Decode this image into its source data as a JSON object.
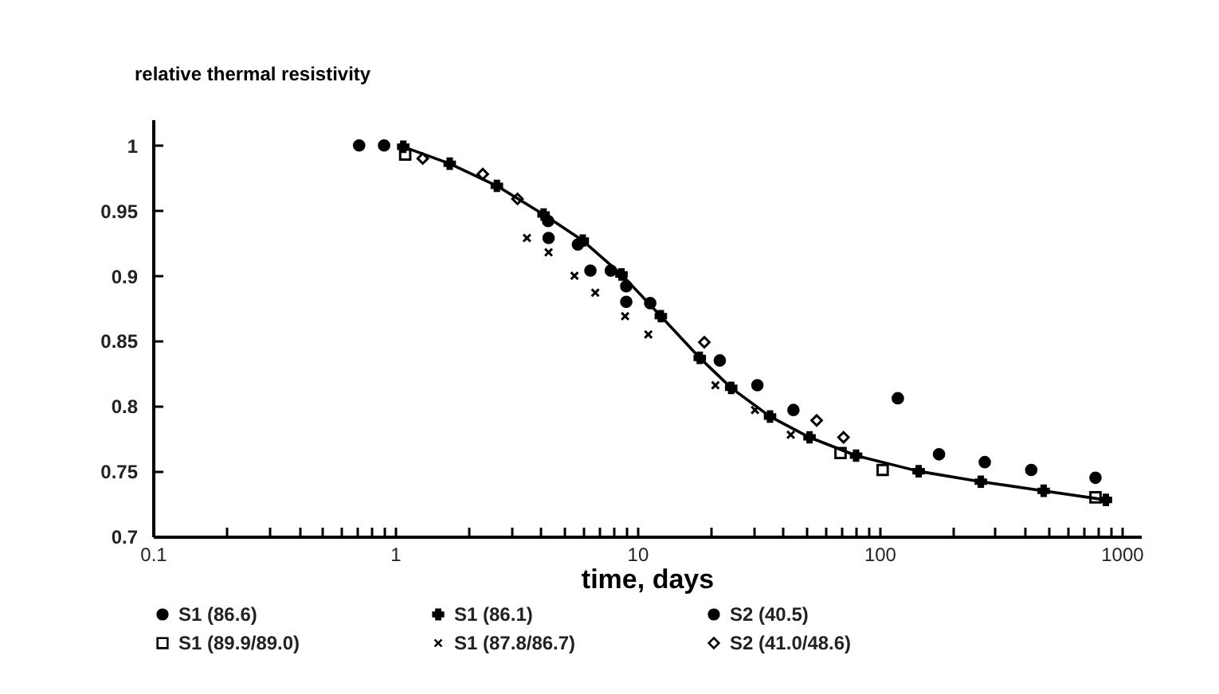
{
  "chart_data": {
    "type": "scatter",
    "ylabel": "relative thermal resistivity",
    "xlabel": "time, days",
    "log": "x",
    "xlim": [
      0.1,
      1200
    ],
    "ylim": [
      0.7,
      1.02
    ],
    "xticks": [
      0.1,
      {
        "value": 0.2,
        "label": null
      },
      {
        "value": 0.3,
        "label": null
      },
      {
        "value": 0.4,
        "label": null
      },
      {
        "value": 0.5,
        "label": null
      },
      {
        "value": 0.6,
        "label": null
      },
      {
        "value": 0.7,
        "label": null
      },
      {
        "value": 0.8,
        "label": null
      },
      {
        "value": 0.9,
        "label": null
      },
      1,
      {
        "value": 2,
        "label": null
      },
      {
        "value": 3,
        "label": null
      },
      {
        "value": 4,
        "label": null
      },
      {
        "value": 5,
        "label": null
      },
      {
        "value": 6,
        "label": null
      },
      {
        "value": 7,
        "label": null
      },
      {
        "value": 8,
        "label": null
      },
      {
        "value": 9,
        "label": null
      },
      10,
      {
        "value": 20,
        "label": null
      },
      {
        "value": 30,
        "label": null
      },
      {
        "value": 40,
        "label": null
      },
      {
        "value": 50,
        "label": null
      },
      {
        "value": 60,
        "label": null
      },
      {
        "value": 70,
        "label": null
      },
      {
        "value": 80,
        "label": null
      },
      {
        "value": 90,
        "label": null
      },
      100,
      {
        "value": 200,
        "label": null
      },
      {
        "value": 300,
        "label": null
      },
      {
        "value": 400,
        "label": null
      },
      {
        "value": 500,
        "label": null
      },
      {
        "value": 600,
        "label": null
      },
      {
        "value": 700,
        "label": null
      },
      {
        "value": 800,
        "label": null
      },
      {
        "value": 900,
        "label": null
      },
      1000
    ],
    "yticks": [
      0.7,
      0.75,
      0.8,
      0.85,
      0.9,
      0.95,
      1
    ],
    "legend": "bottom",
    "series": [
      {
        "name": "S1 (86.6)",
        "color": "#000000",
        "type": "scatter",
        "marker": "circle",
        "x": [
          4.3,
          6.4,
          9,
          119,
          176,
          272,
          423,
          779
        ],
        "values": [
          0.929,
          0.904,
          0.88,
          0.806,
          0.763,
          0.757,
          0.751,
          0.745
        ]
      },
      {
        "name": "S1 (86.1)",
        "color": "#000000",
        "type": "line",
        "marker": "cross",
        "x": [
          1.08,
          1.68,
          2.63,
          4.1,
          5.95,
          8.6,
          12.5,
          18.1,
          24.4,
          35.3,
          51.4,
          80,
          145,
          262,
          476,
          860
        ],
        "values": [
          0.999,
          0.986,
          0.969,
          0.947,
          0.927,
          0.901,
          0.869,
          0.837,
          0.814,
          0.792,
          0.776,
          0.762,
          0.75,
          0.742,
          0.735,
          0.728
        ]
      },
      {
        "name": "S2 (40.5)",
        "color": "#000000",
        "type": "scatter",
        "marker": "circle",
        "x": [
          0.71,
          0.9,
          4.28,
          5.68,
          7.77,
          9,
          11.3,
          21.9,
          31.3,
          44.1
        ],
        "values": [
          1.0,
          1.0,
          0.942,
          0.924,
          0.904,
          0.892,
          0.879,
          0.835,
          0.816,
          0.797
        ]
      },
      {
        "name": "S1 (89.9/89.0)",
        "color": "#000000",
        "type": "scatter",
        "marker": "square",
        "x": [
          1.1,
          69,
          103,
          779
        ],
        "values": [
          0.993,
          0.764,
          0.751,
          0.73
        ]
      },
      {
        "name": "S1 (87.8/86.7)",
        "color": "#000000",
        "type": "scatter",
        "marker": "cross",
        "x": [
          3.5,
          4.3,
          5.5,
          6.7,
          8.9,
          11.1,
          21,
          30.6,
          43
        ],
        "values": [
          0.929,
          0.918,
          0.9,
          0.887,
          0.869,
          0.855,
          0.816,
          0.797,
          0.778
        ]
      },
      {
        "name": "S2 (41.0/48.6)",
        "color": "#000000",
        "type": "scatter",
        "marker": "diamond",
        "x": [
          1.3,
          2.3,
          3.2,
          18.9,
          55,
          71
        ],
        "values": [
          0.99,
          0.978,
          0.959,
          0.849,
          0.789,
          0.776
        ]
      }
    ]
  }
}
